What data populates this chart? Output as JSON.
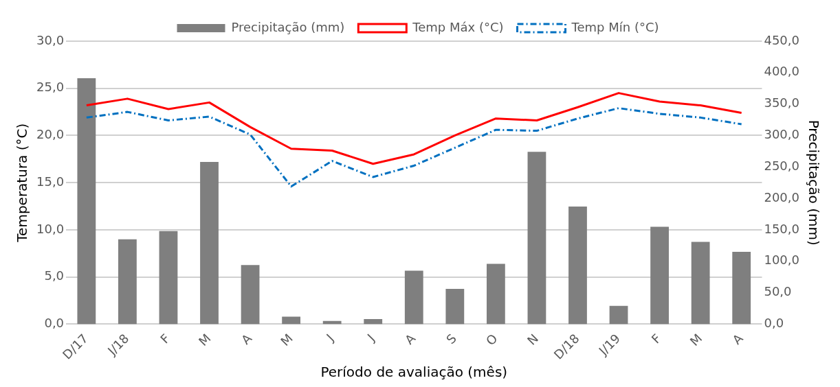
{
  "chart_data": {
    "type": "bar",
    "xlabel": "Período de avaliação (mês)",
    "ylabel": "Temperatura (°C)",
    "y2label": "Precipitação (mm)",
    "categories": [
      "D/17",
      "J/18",
      "F",
      "M",
      "A",
      "M",
      "J",
      "J",
      "A",
      "S",
      "O",
      "N",
      "D/18",
      "J/19",
      "F",
      "M",
      "A"
    ],
    "series": [
      {
        "name": "Precipitação (mm)",
        "axis": "y2",
        "color": "#7f7f7f",
        "values": [
          391,
          135,
          148,
          258,
          94,
          12,
          5,
          8,
          85,
          56,
          96,
          274,
          187,
          29,
          155,
          131,
          115
        ]
      },
      {
        "name": "Temp Máx (°C)",
        "type": "line",
        "color": "#ff0000",
        "line_style": "solid",
        "values": [
          23.2,
          23.9,
          22.8,
          23.5,
          20.9,
          18.6,
          18.4,
          17.0,
          18.0,
          20.0,
          21.8,
          21.6,
          23.0,
          24.5,
          23.6,
          23.2,
          22.4
        ]
      },
      {
        "name": "Temp Mín (°C)",
        "type": "line",
        "color": "#0070c0",
        "line_style": "dashdot",
        "values": [
          21.9,
          22.5,
          21.6,
          22.0,
          20.1,
          14.6,
          17.3,
          15.6,
          16.8,
          18.7,
          20.6,
          20.5,
          21.8,
          22.9,
          22.3,
          21.9,
          21.2
        ]
      }
    ],
    "ylim": [
      0,
      30
    ],
    "yticks": [
      {
        "value": 0,
        "label": "0,0"
      },
      {
        "value": 5,
        "label": "5,0"
      },
      {
        "value": 10,
        "label": "10,0"
      },
      {
        "value": 15,
        "label": "15,0"
      },
      {
        "value": 20,
        "label": "20,0"
      },
      {
        "value": 25,
        "label": "25,0"
      },
      {
        "value": 30,
        "label": "30,0"
      }
    ],
    "y2lim": [
      0,
      450
    ],
    "y2ticks": [
      {
        "value": 0,
        "label": "0,0"
      },
      {
        "value": 50,
        "label": "50,0"
      },
      {
        "value": 100,
        "label": "100,0"
      },
      {
        "value": 150,
        "label": "150,0"
      },
      {
        "value": 200,
        "label": "200,0"
      },
      {
        "value": 250,
        "label": "250,0"
      },
      {
        "value": 300,
        "label": "300,0"
      },
      {
        "value": 350,
        "label": "350,0"
      },
      {
        "value": 400,
        "label": "400,0"
      },
      {
        "value": 450,
        "label": "450,0"
      }
    ],
    "grid": "y",
    "legend": "top",
    "marker": "none"
  }
}
